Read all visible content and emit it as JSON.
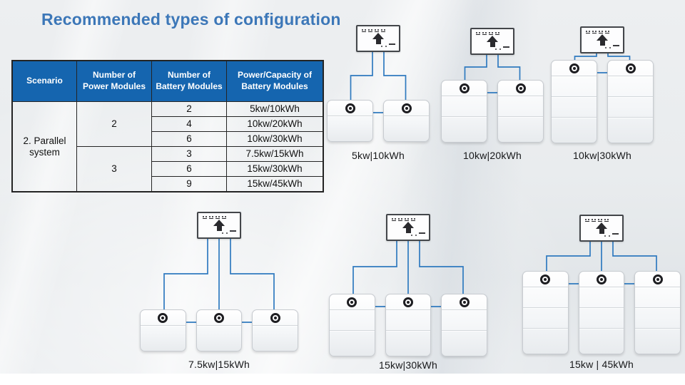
{
  "title": "Recommended types of configuration",
  "table": {
    "headers": [
      "Scenario",
      "Number of Power Modules",
      "Number of Battery Modules",
      "Power/Capacity of Battery Modules"
    ],
    "scenario": "2. Parallel system",
    "groups": [
      {
        "power_modules": "2"
      },
      {
        "power_modules": "3"
      }
    ],
    "rows": [
      {
        "battery_modules": "2",
        "capacity": "5kw/10kWh"
      },
      {
        "battery_modules": "4",
        "capacity": "10kw/20kWh"
      },
      {
        "battery_modules": "6",
        "capacity": "10kw/30kWh"
      },
      {
        "battery_modules": "3",
        "capacity": "7.5kw/15kWh"
      },
      {
        "battery_modules": "6",
        "capacity": "15kw/30kWh"
      },
      {
        "battery_modules": "9",
        "capacity": "15kw/45kWh"
      }
    ]
  },
  "diagrams": [
    {
      "label": "5kw|10kWh",
      "towers": 2,
      "modules_per_tower": 1
    },
    {
      "label": "10kw|20kWh",
      "towers": 2,
      "modules_per_tower": 2
    },
    {
      "label": "10kw|30kWh",
      "towers": 2,
      "modules_per_tower": 3
    },
    {
      "label": "7.5kw|15kWh",
      "towers": 3,
      "modules_per_tower": 1
    },
    {
      "label": "15kw|30kWh",
      "towers": 3,
      "modules_per_tower": 2
    },
    {
      "label": "15kw | 45kWh",
      "towers": 3,
      "modules_per_tower": 3
    }
  ],
  "colors": {
    "title": "#3c77b8",
    "table_header_bg": "#1565af",
    "table_header_text": "#ffffff",
    "wire": "#2f7abf"
  }
}
